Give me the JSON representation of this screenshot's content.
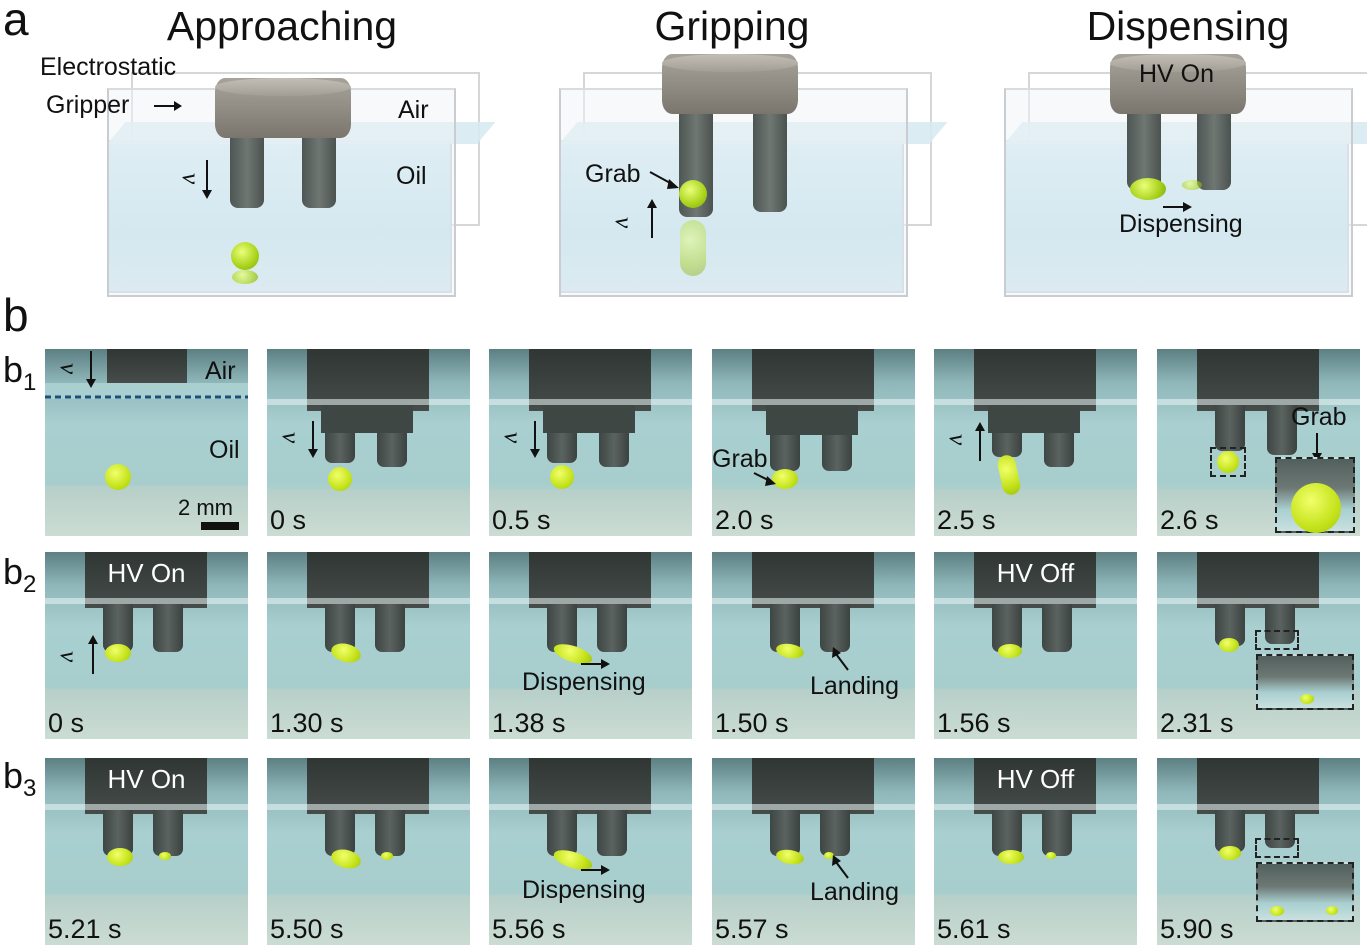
{
  "panel_a": {
    "letter": "a",
    "stages": [
      {
        "title": "Approaching",
        "labels": {
          "gripper": "Electrostatic",
          "gripper2": "Gripper",
          "air": "Air",
          "oil": "Oil",
          "v": "v"
        }
      },
      {
        "title": "Gripping",
        "labels": {
          "grab": "Grab",
          "v": "v"
        }
      },
      {
        "title": "Dispensing",
        "labels": {
          "hv": "HV On",
          "dispensing": "Dispensing"
        }
      }
    ]
  },
  "panel_b": {
    "letter": "b",
    "rows": [
      {
        "row_label": "b",
        "row_sub": "1",
        "frames": [
          {
            "time": "",
            "labels": [
              "Air",
              "Oil",
              "v"
            ],
            "scale": "2 mm"
          },
          {
            "time": "0 s",
            "labels": [
              "v"
            ]
          },
          {
            "time": "0.5 s",
            "labels": [
              "v"
            ]
          },
          {
            "time": "2.0 s",
            "labels": [
              "Grab"
            ]
          },
          {
            "time": "2.5 s",
            "labels": [
              "v"
            ]
          },
          {
            "time": "2.6 s",
            "labels": [
              "Grab"
            ]
          }
        ]
      },
      {
        "row_label": "b",
        "row_sub": "2",
        "frames": [
          {
            "time": "0 s",
            "hv": "HV On",
            "labels": [
              "v"
            ]
          },
          {
            "time": "1.30 s"
          },
          {
            "time": "1.38 s",
            "labels": [
              "Dispensing"
            ]
          },
          {
            "time": "1.50 s",
            "labels": [
              "Landing"
            ]
          },
          {
            "time": "1.56 s",
            "hv": "HV Off"
          },
          {
            "time": "2.31 s"
          }
        ]
      },
      {
        "row_label": "b",
        "row_sub": "3",
        "frames": [
          {
            "time": "5.21 s",
            "hv": "HV On"
          },
          {
            "time": "5.50 s"
          },
          {
            "time": "5.56 s",
            "labels": [
              "Dispensing"
            ]
          },
          {
            "time": "5.57 s",
            "labels": [
              "Landing"
            ]
          },
          {
            "time": "5.61 s",
            "hv": "HV Off"
          },
          {
            "time": "5.90 s"
          }
        ]
      }
    ]
  }
}
